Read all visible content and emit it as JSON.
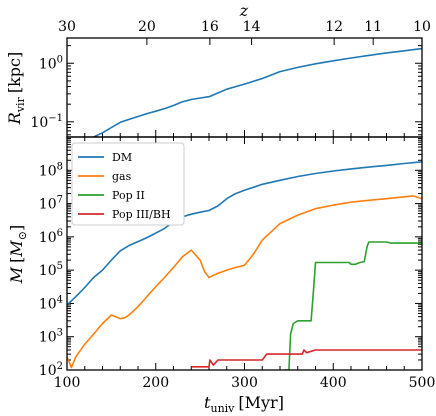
{
  "chart_data": [
    {
      "type": "line",
      "panel": "top",
      "xlabel": "t_univ [Myr]",
      "ylabel": "R_vir [kpc]",
      "ylabel_main": "R",
      "ylabel_sub": "vir",
      "ylabel_unit": "[kpc]",
      "xlim": [
        100,
        500
      ],
      "ylim": [
        0.055,
        2.7
      ],
      "yscale": "log",
      "ytick_labels": [
        {
          "value": 1,
          "base": "10",
          "exp": "0"
        },
        {
          "value": 0.1,
          "base": "10",
          "exp": "−1"
        }
      ],
      "top_axis": {
        "label": "z",
        "ticks": [
          {
            "label": "30",
            "x": 100
          },
          {
            "label": "20",
            "x": 190
          },
          {
            "label": "16",
            "x": 261
          },
          {
            "label": "14",
            "x": 308
          },
          {
            "label": "12",
            "x": 401
          },
          {
            "label": "11",
            "x": 445
          },
          {
            "label": "10",
            "x": 500
          }
        ]
      },
      "series": [
        {
          "color": "#1f77b4",
          "x": [
            130,
            140,
            150,
            160,
            170,
            180,
            190,
            200,
            210,
            220,
            230,
            240,
            250,
            260,
            270,
            280,
            290,
            300,
            320,
            340,
            360,
            380,
            400,
            420,
            440,
            460,
            480,
            500
          ],
          "y": [
            0.055,
            0.065,
            0.08,
            0.098,
            0.11,
            0.123,
            0.138,
            0.152,
            0.168,
            0.19,
            0.22,
            0.24,
            0.255,
            0.268,
            0.31,
            0.36,
            0.4,
            0.44,
            0.55,
            0.72,
            0.85,
            0.98,
            1.1,
            1.23,
            1.36,
            1.5,
            1.63,
            1.78
          ]
        }
      ]
    },
    {
      "type": "line",
      "panel": "bottom",
      "xlabel": "t_univ [Myr]",
      "xlabel_main": "t",
      "xlabel_sub": "univ",
      "xlabel_unit": "[Myr]",
      "ylabel": "M [M_⊙]",
      "xlim": [
        100,
        500
      ],
      "ylim": [
        100,
        1000000000
      ],
      "yscale": "log",
      "xtick_labels": [
        "100",
        "200",
        "300",
        "400",
        "500"
      ],
      "xticks": [
        100,
        200,
        300,
        400,
        500
      ],
      "ytick_labels": [
        {
          "value": 100,
          "base": "10",
          "exp": "2"
        },
        {
          "value": 1000,
          "base": "10",
          "exp": "3"
        },
        {
          "value": 10000,
          "base": "10",
          "exp": "4"
        },
        {
          "value": 100000,
          "base": "10",
          "exp": "5"
        },
        {
          "value": 1000000,
          "base": "10",
          "exp": "6"
        },
        {
          "value": 10000000,
          "base": "10",
          "exp": "7"
        },
        {
          "value": 100000000,
          "base": "10",
          "exp": "8"
        }
      ],
      "legend": "top-left",
      "series": [
        {
          "name": "DM",
          "color": "#1f77b4",
          "x": [
            100,
            110,
            120,
            130,
            140,
            150,
            160,
            170,
            180,
            190,
            200,
            210,
            220,
            230,
            240,
            250,
            260,
            270,
            280,
            290,
            300,
            320,
            340,
            360,
            380,
            400,
            420,
            440,
            460,
            480,
            500
          ],
          "y": [
            9000,
            16000,
            30000,
            60000,
            100000,
            200000,
            380000,
            550000,
            720000,
            950000,
            1300000,
            1800000,
            2800000,
            4000000,
            4800000,
            5500000,
            6200000,
            8500000,
            14000000,
            20000000,
            25000000,
            38000000,
            50000000,
            65000000,
            80000000,
            95000000,
            110000000,
            125000000,
            140000000,
            160000000,
            180000000
          ]
        },
        {
          "name": "gas",
          "color": "#ff7f0e",
          "x": [
            100,
            105,
            110,
            120,
            130,
            140,
            150,
            160,
            165,
            170,
            180,
            190,
            200,
            210,
            220,
            230,
            240,
            250,
            255,
            260,
            265,
            270,
            280,
            290,
            300,
            310,
            320,
            340,
            360,
            380,
            400,
            420,
            440,
            460,
            480,
            490,
            500
          ],
          "y": [
            250,
            120,
            250,
            600,
            1200,
            2500,
            4500,
            3500,
            3700,
            4500,
            8000,
            16000,
            32000,
            60000,
            120000,
            250000,
            400000,
            200000,
            90000,
            60000,
            70000,
            80000,
            100000,
            120000,
            140000,
            300000,
            800000,
            2500000,
            4500000,
            7000000,
            9000000,
            11000000,
            12500000,
            14000000,
            16000000,
            17000000,
            14000000
          ]
        },
        {
          "name": "Pop II",
          "color": "#2ca02c",
          "x": [
            345,
            350,
            352,
            355,
            360,
            370,
            375,
            378,
            380,
            400,
            418,
            420,
            425,
            430,
            435,
            438,
            440,
            450,
            460,
            465,
            470,
            480,
            490,
            500
          ],
          "y": [
            100,
            100,
            1200,
            2500,
            3000,
            3000,
            3000,
            30000,
            170000,
            170000,
            170000,
            150000,
            150000,
            170000,
            180000,
            500000,
            700000,
            700000,
            700000,
            650000,
            650000,
            650000,
            650000,
            650000
          ]
        },
        {
          "name": "Pop III/BH",
          "color": "#d62728",
          "x": [
            240,
            260,
            261,
            265,
            270,
            280,
            300,
            320,
            325,
            330,
            350,
            365,
            367,
            370,
            380,
            400,
            420,
            450,
            480,
            500
          ],
          "y": [
            125,
            125,
            200,
            140,
            200,
            200,
            200,
            200,
            300,
            300,
            300,
            300,
            400,
            330,
            400,
            400,
            400,
            400,
            400,
            400
          ]
        }
      ]
    }
  ]
}
